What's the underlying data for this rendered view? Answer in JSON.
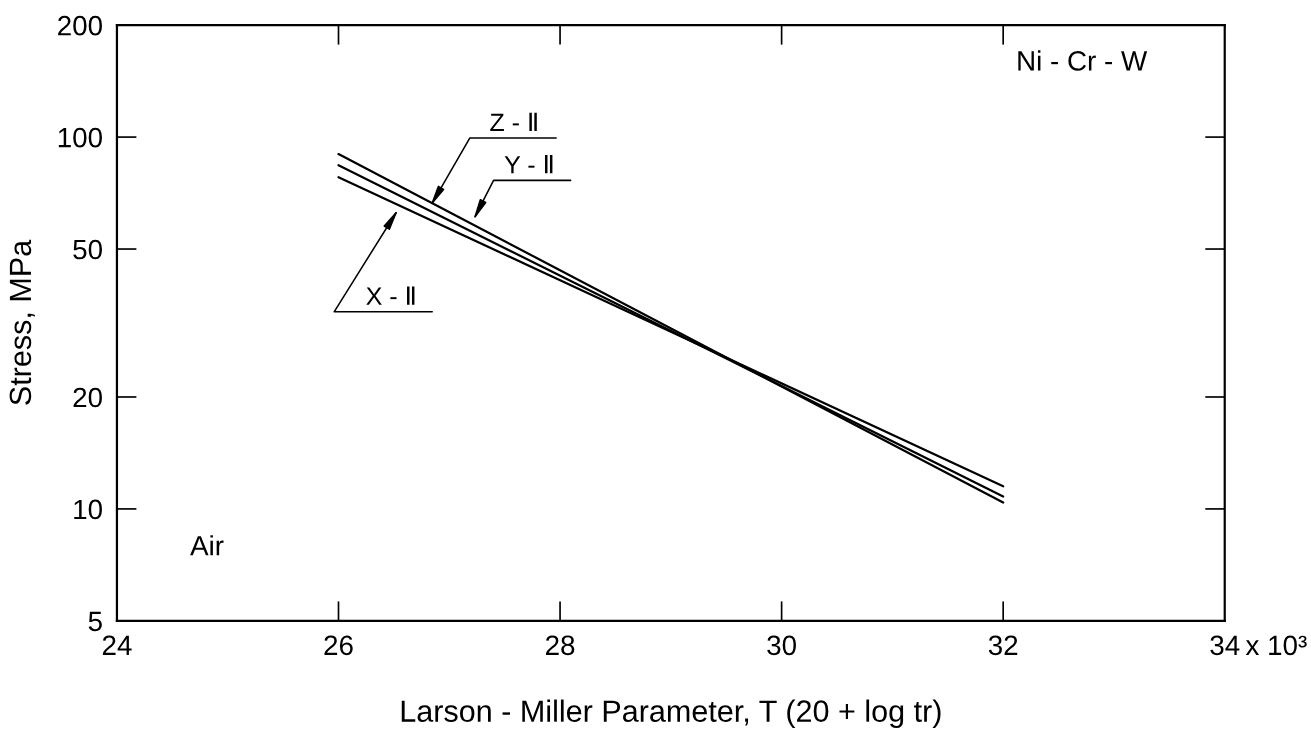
{
  "chart_data": {
    "type": "line",
    "xlabel": "Larson - Miller Parameter, T (20 + log tr)",
    "ylabel": "Stress, MPa",
    "annotations": [
      "Ni - Cr - W",
      "Air",
      "x 10³"
    ],
    "x": [
      26,
      32
    ],
    "series": [
      {
        "name": "X - Ⅱ",
        "color": "#000000",
        "values": [
          78,
          11.5
        ]
      },
      {
        "name": "Y - Ⅱ",
        "color": "#000000",
        "values": [
          90,
          10.4
        ]
      },
      {
        "name": "Z - Ⅱ",
        "color": "#000000",
        "values": [
          84,
          10.8
        ]
      }
    ],
    "xlim": [
      24,
      34
    ],
    "xticks": [
      24,
      26,
      28,
      30,
      32,
      34
    ],
    "ylim": [
      5,
      200
    ],
    "yticks": [
      5,
      10,
      20,
      50,
      100,
      200
    ],
    "log": "y",
    "line_style": "solid"
  }
}
